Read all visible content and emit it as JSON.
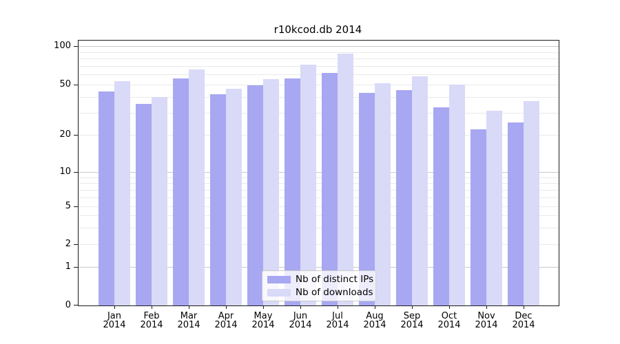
{
  "title": "r10kcod.db 2014",
  "chart_data": {
    "type": "bar",
    "title": "r10kcod.db 2014",
    "categories": [
      "Jan 2014",
      "Feb 2014",
      "Mar 2014",
      "Apr 2014",
      "May 2014",
      "Jun 2014",
      "Jul 2014",
      "Aug 2014",
      "Sep 2014",
      "Oct 2014",
      "Nov 2014",
      "Dec 2014"
    ],
    "series": [
      {
        "name": "Nb of distinct IPs",
        "color": "#a7a7f2",
        "values": [
          44,
          35,
          56,
          42,
          49,
          56,
          62,
          43,
          45,
          33,
          22,
          25
        ]
      },
      {
        "name": "Nb of downloads",
        "color": "#d9d9f8",
        "values": [
          53,
          40,
          66,
          46,
          55,
          72,
          87,
          51,
          58,
          50,
          31,
          37
        ]
      }
    ],
    "xlabel": "",
    "ylabel": "",
    "yscale": "symlog",
    "ylim": [
      0,
      110
    ],
    "y_ticks": [
      0,
      1,
      2,
      5,
      10,
      20,
      50,
      100
    ],
    "y_minor_gridlines": [
      3,
      4,
      6,
      7,
      8,
      9,
      30,
      40,
      60,
      70,
      80,
      90
    ],
    "grid": true,
    "legend_position": "lower center"
  },
  "x_axis": {
    "month_labels": [
      "Jan",
      "Feb",
      "Mar",
      "Apr",
      "May",
      "Jun",
      "Jul",
      "Aug",
      "Sep",
      "Oct",
      "Nov",
      "Dec"
    ],
    "year_label": "2014"
  },
  "legend": {
    "items": [
      {
        "label": "Nb of distinct IPs",
        "color": "#a7a7f2"
      },
      {
        "label": "Nb of downloads",
        "color": "#d9d9f8"
      }
    ]
  },
  "colors": {
    "bar_dark": "#a7a7f2",
    "bar_light": "#d9d9f8",
    "grid_major": "#c9c9c9",
    "grid_minor": "#e9e9e9",
    "axis": "#1a1a1a",
    "legend_border": "#cccccc"
  }
}
